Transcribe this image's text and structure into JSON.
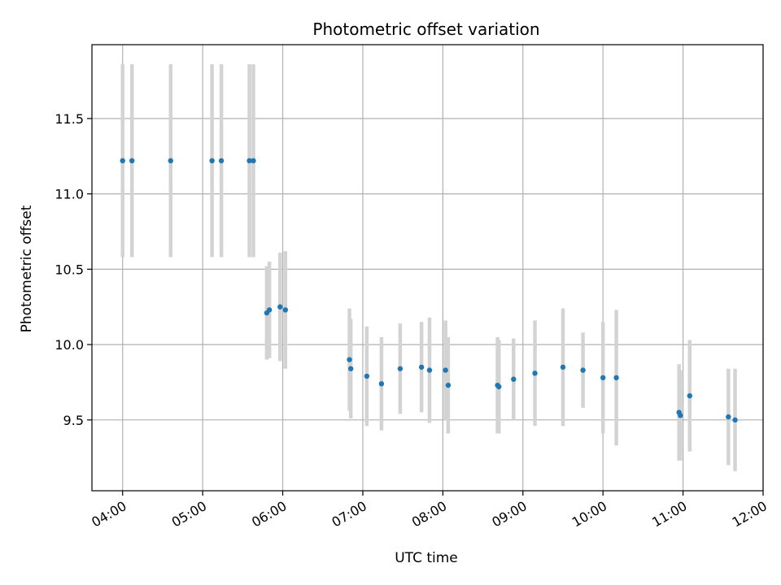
{
  "chart_data": {
    "type": "scatter",
    "title": "Photometric offset variation",
    "xlabel": "UTC time",
    "ylabel": "Photometric offset",
    "xlim": [
      "03:37",
      "12:00"
    ],
    "ylim": [
      9.03,
      11.99
    ],
    "x_ticks": [
      "04:00",
      "05:00",
      "06:00",
      "07:00",
      "08:00",
      "09:00",
      "10:00",
      "11:00",
      "12:00"
    ],
    "y_ticks": [
      9.5,
      10.0,
      10.5,
      11.0,
      11.5
    ],
    "grid": true,
    "point_color": "#1f77b4",
    "errorbar_color": "#d3d3d3",
    "series": [
      {
        "points": [
          {
            "x": "04:00",
            "y": 11.22,
            "err": 0.64
          },
          {
            "x": "04:07",
            "y": 11.22,
            "err": 0.64
          },
          {
            "x": "04:36",
            "y": 11.22,
            "err": 0.64
          },
          {
            "x": "05:07",
            "y": 11.22,
            "err": 0.64
          },
          {
            "x": "05:14",
            "y": 11.22,
            "err": 0.64
          },
          {
            "x": "05:35",
            "y": 11.22,
            "err": 0.64
          },
          {
            "x": "05:38",
            "y": 11.22,
            "err": 0.64
          },
          {
            "x": "05:48",
            "y": 10.21,
            "err": 0.31
          },
          {
            "x": "05:50",
            "y": 10.23,
            "err": 0.32
          },
          {
            "x": "05:58",
            "y": 10.25,
            "err": 0.36
          },
          {
            "x": "06:02",
            "y": 10.23,
            "err": 0.39
          },
          {
            "x": "06:50",
            "y": 9.9,
            "err": 0.34
          },
          {
            "x": "06:51",
            "y": 9.84,
            "err": 0.33
          },
          {
            "x": "07:03",
            "y": 9.79,
            "err": 0.33
          },
          {
            "x": "07:14",
            "y": 9.74,
            "err": 0.31
          },
          {
            "x": "07:28",
            "y": 9.84,
            "err": 0.3
          },
          {
            "x": "07:44",
            "y": 9.85,
            "err": 0.3
          },
          {
            "x": "07:50",
            "y": 9.83,
            "err": 0.35
          },
          {
            "x": "08:02",
            "y": 9.83,
            "err": 0.33
          },
          {
            "x": "08:04",
            "y": 9.73,
            "err": 0.32
          },
          {
            "x": "08:41",
            "y": 9.73,
            "err": 0.32
          },
          {
            "x": "08:42",
            "y": 9.72,
            "err": 0.31
          },
          {
            "x": "08:53",
            "y": 9.77,
            "err": 0.27
          },
          {
            "x": "09:09",
            "y": 9.81,
            "err": 0.35
          },
          {
            "x": "09:30",
            "y": 9.85,
            "err": 0.39
          },
          {
            "x": "09:45",
            "y": 9.83,
            "err": 0.25
          },
          {
            "x": "10:00",
            "y": 9.78,
            "err": 0.37
          },
          {
            "x": "10:10",
            "y": 9.78,
            "err": 0.45
          },
          {
            "x": "10:57",
            "y": 9.55,
            "err": 0.32
          },
          {
            "x": "10:58",
            "y": 9.53,
            "err": 0.3
          },
          {
            "x": "11:05",
            "y": 9.66,
            "err": 0.37
          },
          {
            "x": "11:34",
            "y": 9.52,
            "err": 0.32
          },
          {
            "x": "11:39",
            "y": 9.5,
            "err": 0.34
          }
        ]
      }
    ]
  }
}
